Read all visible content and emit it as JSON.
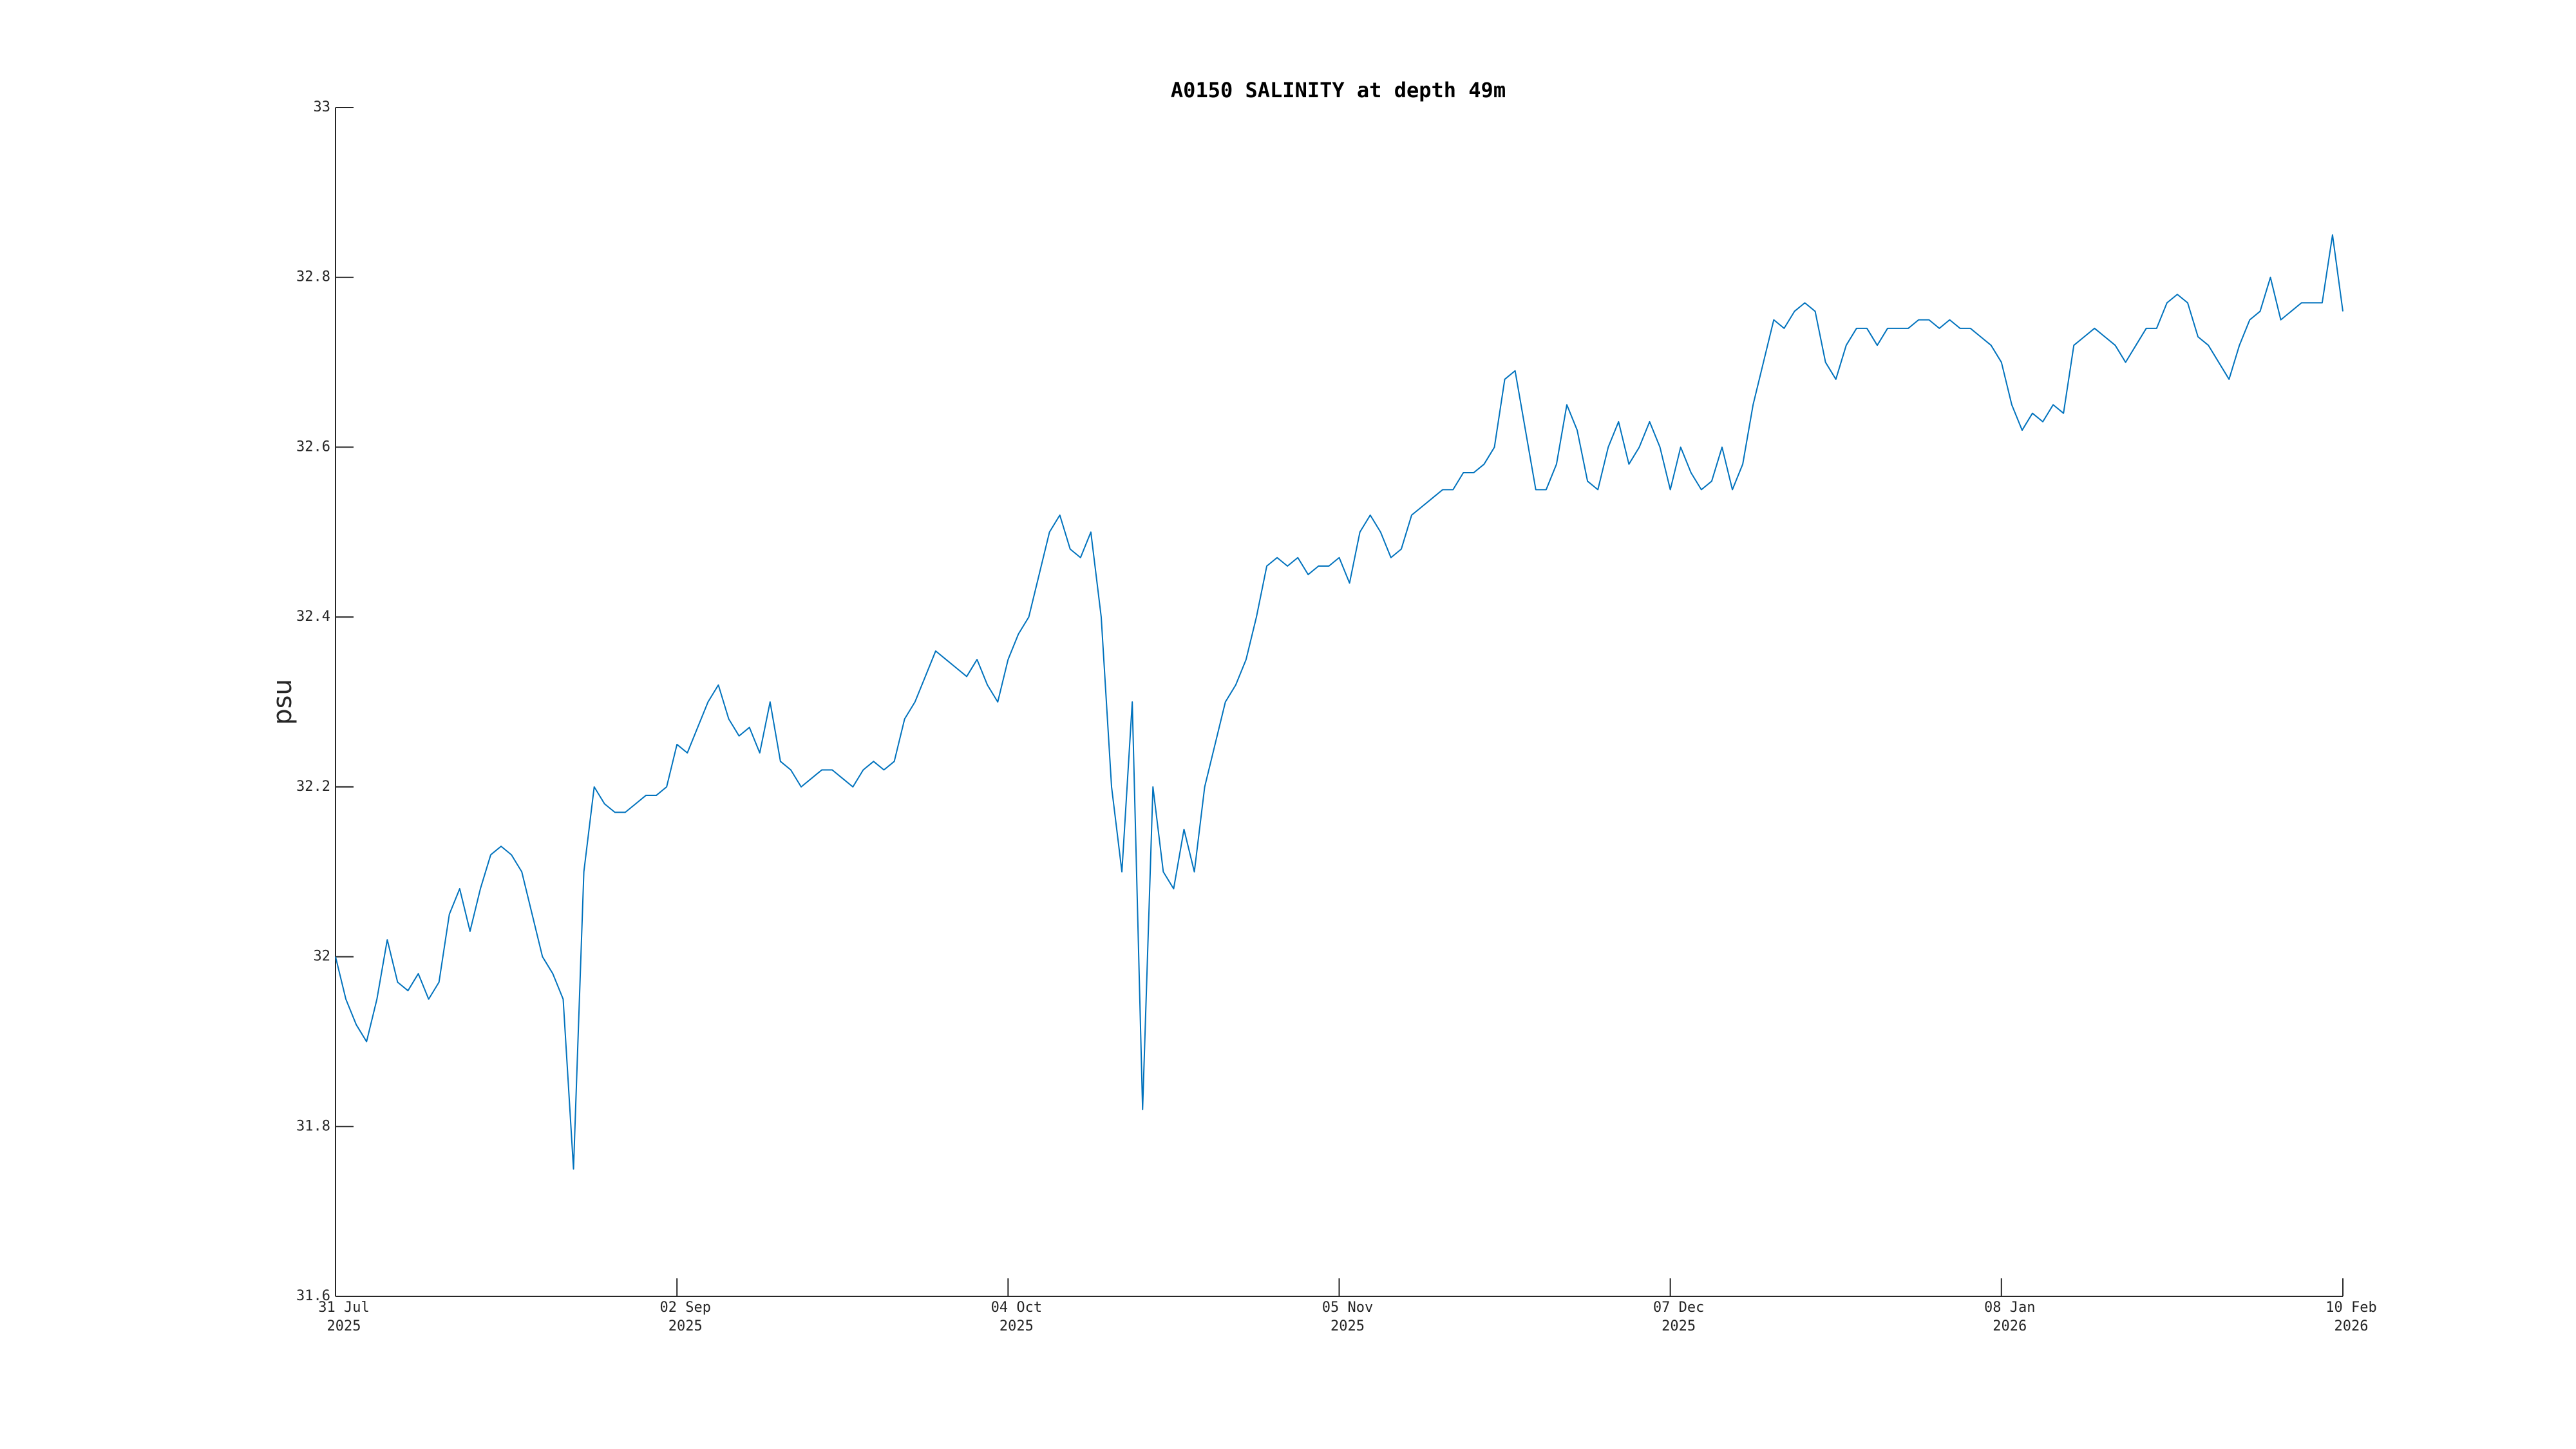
{
  "chart_data": {
    "type": "line",
    "title": "A0150 SALINITY at depth 49m",
    "y_label": "psu",
    "color": "#0072bd",
    "xlim": [
      "2025-07-31",
      "2026-02-10"
    ],
    "xticks": [
      {
        "value": "2025-07-31",
        "label": [
          "31 Jul",
          "2025"
        ]
      },
      {
        "value": "2025-09-02",
        "label": [
          "02 Sep",
          "2025"
        ]
      },
      {
        "value": "2025-10-04",
        "label": [
          "04 Oct",
          "2025"
        ]
      },
      {
        "value": "2025-11-05",
        "label": [
          "05 Nov",
          "2025"
        ]
      },
      {
        "value": "2025-12-07",
        "label": [
          "07 Dec",
          "2025"
        ]
      },
      {
        "value": "2026-01-08",
        "label": [
          "08 Jan",
          "2026"
        ]
      },
      {
        "value": "2026-02-10",
        "label": [
          "10 Feb",
          "2026"
        ]
      }
    ],
    "ylim": [
      31.6,
      33
    ],
    "yticks": [
      31.6,
      31.8,
      32,
      32.2,
      32.4,
      32.6,
      32.8,
      33
    ],
    "grid": false,
    "x": [
      "2025-07-31",
      "2025-08-01",
      "2025-08-02",
      "2025-08-03",
      "2025-08-04",
      "2025-08-05",
      "2025-08-06",
      "2025-08-07",
      "2025-08-08",
      "2025-08-09",
      "2025-08-10",
      "2025-08-11",
      "2025-08-12",
      "2025-08-13",
      "2025-08-14",
      "2025-08-15",
      "2025-08-16",
      "2025-08-17",
      "2025-08-18",
      "2025-08-19",
      "2025-08-20",
      "2025-08-21",
      "2025-08-22",
      "2025-08-23",
      "2025-08-24",
      "2025-08-25",
      "2025-08-26",
      "2025-08-27",
      "2025-08-28",
      "2025-08-29",
      "2025-08-30",
      "2025-08-31",
      "2025-09-01",
      "2025-09-02",
      "2025-09-03",
      "2025-09-04",
      "2025-09-05",
      "2025-09-06",
      "2025-09-07",
      "2025-09-08",
      "2025-09-09",
      "2025-09-10",
      "2025-09-11",
      "2025-09-12",
      "2025-09-13",
      "2025-09-14",
      "2025-09-15",
      "2025-09-16",
      "2025-09-17",
      "2025-09-18",
      "2025-09-19",
      "2025-09-20",
      "2025-09-21",
      "2025-09-22",
      "2025-09-23",
      "2025-09-24",
      "2025-09-25",
      "2025-09-26",
      "2025-09-27",
      "2025-09-28",
      "2025-09-29",
      "2025-09-30",
      "2025-10-01",
      "2025-10-02",
      "2025-10-03",
      "2025-10-04",
      "2025-10-05",
      "2025-10-06",
      "2025-10-07",
      "2025-10-08",
      "2025-10-09",
      "2025-10-10",
      "2025-10-11",
      "2025-10-12",
      "2025-10-13",
      "2025-10-14",
      "2025-10-15",
      "2025-10-16",
      "2025-10-17",
      "2025-10-18",
      "2025-10-19",
      "2025-10-20",
      "2025-10-21",
      "2025-10-22",
      "2025-10-23",
      "2025-10-24",
      "2025-10-25",
      "2025-10-26",
      "2025-10-27",
      "2025-10-28",
      "2025-10-29",
      "2025-10-30",
      "2025-10-31",
      "2025-11-01",
      "2025-11-02",
      "2025-11-03",
      "2025-11-04",
      "2025-11-05",
      "2025-11-06",
      "2025-11-07",
      "2025-11-08",
      "2025-11-09",
      "2025-11-10",
      "2025-11-11",
      "2025-11-12",
      "2025-11-13",
      "2025-11-14",
      "2025-11-15",
      "2025-11-16",
      "2025-11-17",
      "2025-11-18",
      "2025-11-19",
      "2025-11-20",
      "2025-11-21",
      "2025-11-22",
      "2025-11-23",
      "2025-11-24",
      "2025-11-25",
      "2025-11-26",
      "2025-11-27",
      "2025-11-28",
      "2025-11-29",
      "2025-11-30",
      "2025-12-01",
      "2025-12-02",
      "2025-12-03",
      "2025-12-04",
      "2025-12-05",
      "2025-12-06",
      "2025-12-07",
      "2025-12-08",
      "2025-12-09",
      "2025-12-10",
      "2025-12-11",
      "2025-12-12",
      "2025-12-13",
      "2025-12-14",
      "2025-12-15",
      "2025-12-16",
      "2025-12-17",
      "2025-12-18",
      "2025-12-19",
      "2025-12-20",
      "2025-12-21",
      "2025-12-22",
      "2025-12-23",
      "2025-12-24",
      "2025-12-25",
      "2025-12-26",
      "2025-12-27",
      "2025-12-28",
      "2025-12-29",
      "2025-12-30",
      "2025-12-31",
      "2026-01-01",
      "2026-01-02",
      "2026-01-03",
      "2026-01-04",
      "2026-01-05",
      "2026-01-06",
      "2026-01-07",
      "2026-01-08",
      "2026-01-09",
      "2026-01-10",
      "2026-01-11",
      "2026-01-12",
      "2026-01-13",
      "2026-01-14",
      "2026-01-15",
      "2026-01-16",
      "2026-01-17",
      "2026-01-18",
      "2026-01-19",
      "2026-01-20",
      "2026-01-21",
      "2026-01-22",
      "2026-01-23",
      "2026-01-24",
      "2026-01-25",
      "2026-01-26",
      "2026-01-27",
      "2026-01-28",
      "2026-01-29",
      "2026-01-30",
      "2026-01-31",
      "2026-02-01",
      "2026-02-02",
      "2026-02-03",
      "2026-02-04",
      "2026-02-05",
      "2026-02-06",
      "2026-02-07",
      "2026-02-08",
      "2026-02-09",
      "2026-02-10"
    ],
    "values": [
      32.0,
      31.95,
      31.92,
      31.9,
      31.95,
      32.02,
      31.97,
      31.96,
      31.98,
      31.95,
      31.97,
      32.05,
      32.08,
      32.03,
      32.08,
      32.12,
      32.13,
      32.12,
      32.1,
      32.05,
      32.0,
      31.98,
      31.95,
      31.75,
      32.1,
      32.2,
      32.18,
      32.17,
      32.17,
      32.18,
      32.19,
      32.19,
      32.2,
      32.25,
      32.24,
      32.27,
      32.3,
      32.32,
      32.28,
      32.26,
      32.27,
      32.24,
      32.3,
      32.23,
      32.22,
      32.2,
      32.21,
      32.22,
      32.22,
      32.21,
      32.2,
      32.22,
      32.23,
      32.22,
      32.23,
      32.28,
      32.3,
      32.33,
      32.36,
      32.35,
      32.34,
      32.33,
      32.35,
      32.32,
      32.3,
      32.35,
      32.38,
      32.4,
      32.45,
      32.5,
      32.52,
      32.48,
      32.47,
      32.5,
      32.4,
      32.2,
      32.1,
      32.3,
      31.82,
      32.2,
      32.1,
      32.08,
      32.15,
      32.1,
      32.2,
      32.25,
      32.3,
      32.32,
      32.35,
      32.4,
      32.46,
      32.47,
      32.46,
      32.47,
      32.45,
      32.46,
      32.46,
      32.47,
      32.44,
      32.5,
      32.52,
      32.5,
      32.47,
      32.48,
      32.52,
      32.53,
      32.54,
      32.55,
      32.55,
      32.57,
      32.57,
      32.58,
      32.6,
      32.68,
      32.69,
      32.62,
      32.55,
      32.55,
      32.58,
      32.65,
      32.62,
      32.56,
      32.55,
      32.6,
      32.63,
      32.58,
      32.6,
      32.63,
      32.6,
      32.55,
      32.6,
      32.57,
      32.55,
      32.56,
      32.6,
      32.55,
      32.58,
      32.65,
      32.7,
      32.75,
      32.74,
      32.76,
      32.77,
      32.76,
      32.7,
      32.68,
      32.72,
      32.74,
      32.74,
      32.72,
      32.74,
      32.74,
      32.74,
      32.75,
      32.75,
      32.74,
      32.75,
      32.74,
      32.74,
      32.73,
      32.72,
      32.7,
      32.65,
      32.62,
      32.64,
      32.63,
      32.65,
      32.64,
      32.72,
      32.73,
      32.74,
      32.73,
      32.72,
      32.7,
      32.72,
      32.74,
      32.74,
      32.77,
      32.78,
      32.77,
      32.73,
      32.72,
      32.7,
      32.68,
      32.72,
      32.75,
      32.76,
      32.8,
      32.75,
      32.76,
      32.77,
      32.77,
      32.77,
      32.85,
      32.76
    ]
  }
}
